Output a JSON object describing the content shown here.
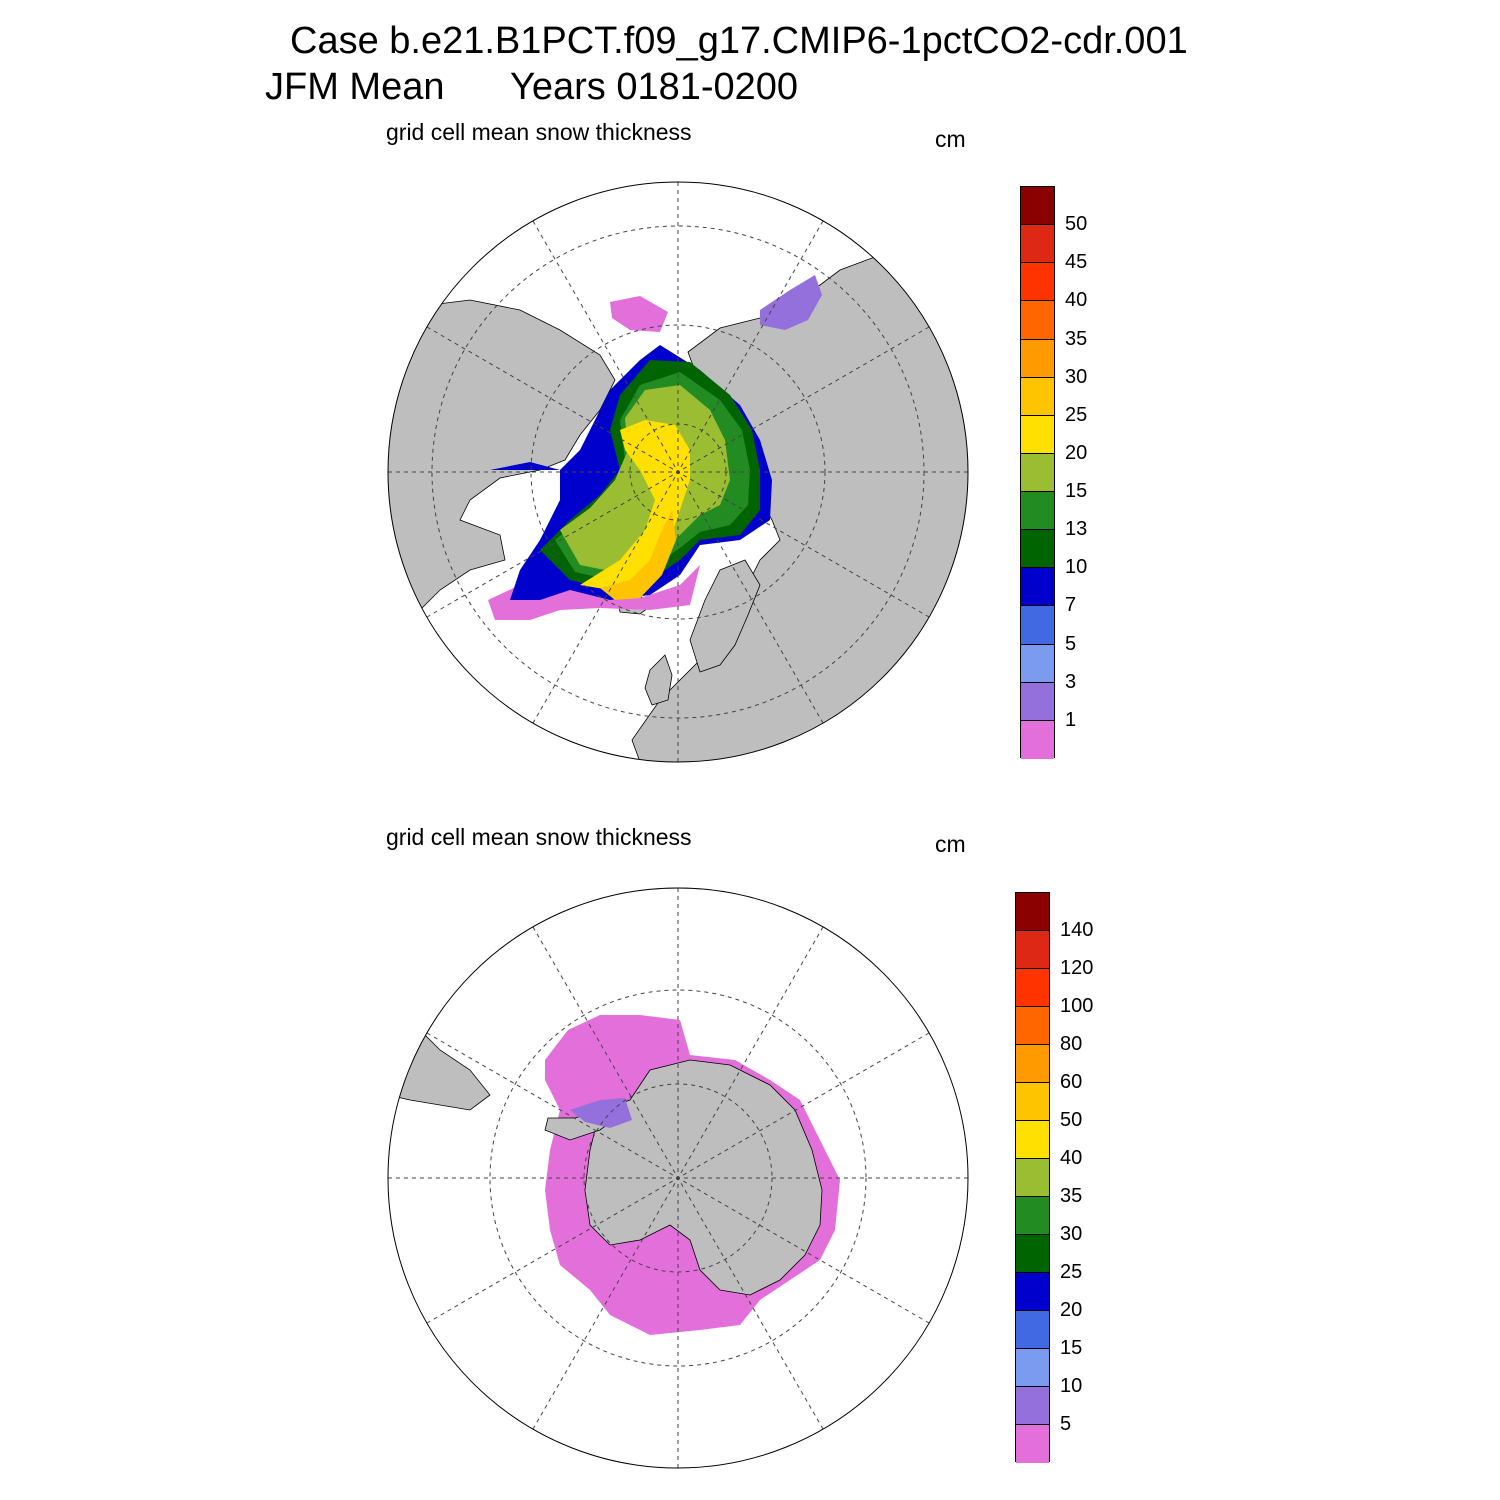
{
  "title": {
    "line1": "Case b.e21.B1PCT.f09_g17.CMIP6-1pctCO2-cdr.001",
    "line2_left": "JFM Mean",
    "line2_right": "Years 0181-0200"
  },
  "colors": {
    "land": "#bebebe",
    "ocean": "#ffffff",
    "scale": [
      "#e36fdb",
      "#9370db",
      "#7b9bf0",
      "#4169e1",
      "#0000cd",
      "#006400",
      "#228b22",
      "#9abd32",
      "#ffe000",
      "#ffc400",
      "#ff9a00",
      "#ff6600",
      "#ff3300",
      "#dc2814",
      "#8b0000"
    ]
  },
  "panels": [
    {
      "id": "arctic",
      "subtitle": "grid cell mean snow thickness",
      "units": "cm",
      "colorbar_labels": [
        "50",
        "45",
        "40",
        "35",
        "30",
        "25",
        "20",
        "15",
        "13",
        "10",
        "7",
        "5",
        "3",
        "1"
      ]
    },
    {
      "id": "antarctic",
      "subtitle": "grid cell mean snow thickness",
      "units": "cm",
      "colorbar_labels": [
        "140",
        "120",
        "100",
        "80",
        "60",
        "50",
        "40",
        "35",
        "30",
        "25",
        "20",
        "15",
        "10",
        "5"
      ]
    }
  ]
}
